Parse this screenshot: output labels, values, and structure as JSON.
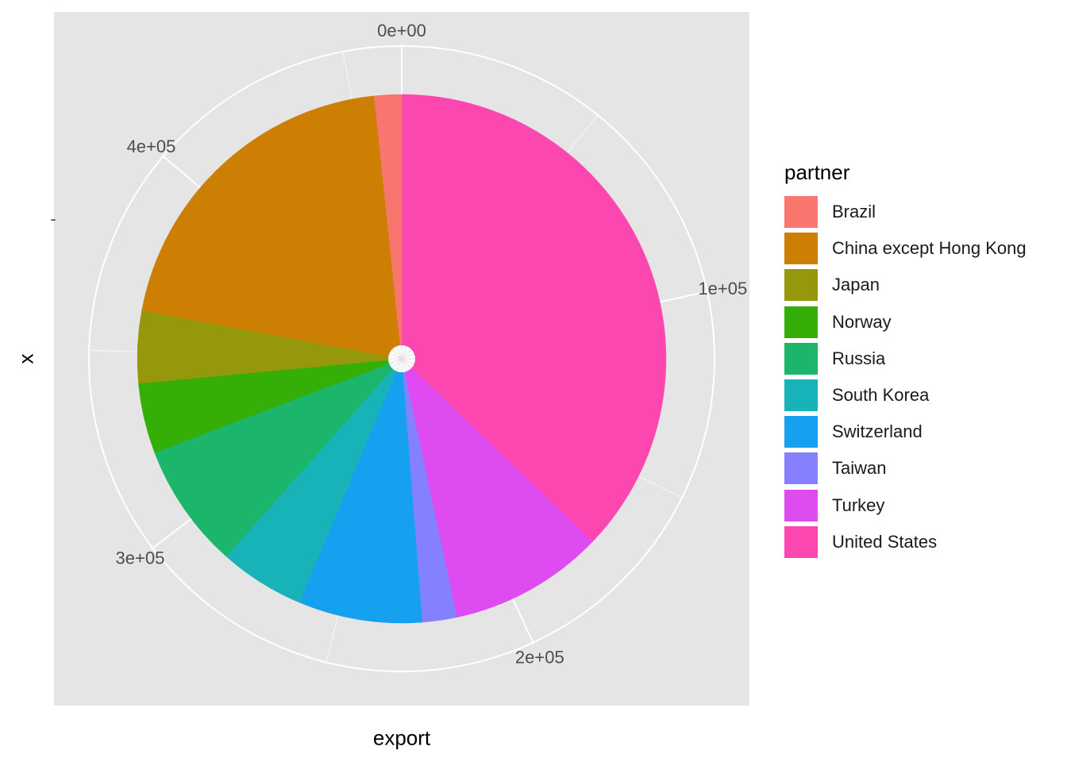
{
  "chart_data": {
    "type": "pie",
    "xlabel": "export",
    "ylabel": "x",
    "y_tick_labels": [
      "-"
    ],
    "angular_ticks": [
      {
        "value": 0,
        "label": "0e+00"
      },
      {
        "value": 100000,
        "label": "1e+05"
      },
      {
        "value": 200000,
        "label": "2e+05"
      },
      {
        "value": 300000,
        "label": "3e+05"
      },
      {
        "value": 400000,
        "label": "4e+05"
      }
    ],
    "total": 464000,
    "legend_title": "partner",
    "legend_position": "right",
    "grid": true,
    "slices": [
      {
        "name": "Brazil",
        "value": 7700,
        "color": "#F8766D"
      },
      {
        "name": "China except Hong Kong",
        "value": 94700,
        "color": "#CD7F04"
      },
      {
        "name": "Japan",
        "value": 20500,
        "color": "#95980B"
      },
      {
        "name": "Norway",
        "value": 19900,
        "color": "#36AE08"
      },
      {
        "name": "Russia",
        "value": 35600,
        "color": "#1BB66B"
      },
      {
        "name": "South Korea",
        "value": 24200,
        "color": "#18B3B9"
      },
      {
        "name": "Switzerland",
        "value": 35100,
        "color": "#16A0F0"
      },
      {
        "name": "Taiwan",
        "value": 9800,
        "color": "#8580FD"
      },
      {
        "name": "Turkey",
        "value": 44100,
        "color": "#DE4BF0"
      },
      {
        "name": "United States",
        "value": 172400,
        "color": "#FC47B0"
      }
    ]
  }
}
